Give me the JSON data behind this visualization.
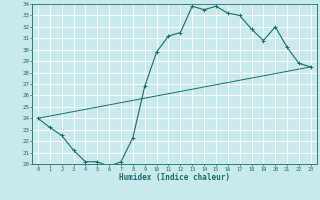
{
  "title": "",
  "xlabel": "Humidex (Indice chaleur)",
  "ylabel": "",
  "bg_color": "#c8eaea",
  "grid_color": "#ffffff",
  "line_color": "#1a6b6b",
  "xlim": [
    -0.5,
    23.5
  ],
  "ylim": [
    20,
    34
  ],
  "xticks": [
    0,
    1,
    2,
    3,
    4,
    5,
    6,
    7,
    8,
    9,
    10,
    11,
    12,
    13,
    14,
    15,
    16,
    17,
    18,
    19,
    20,
    21,
    22,
    23
  ],
  "yticks": [
    20,
    21,
    22,
    23,
    24,
    25,
    26,
    27,
    28,
    29,
    30,
    31,
    32,
    33,
    34
  ],
  "curve1_x": [
    0,
    1,
    2,
    3,
    4,
    5,
    6,
    7,
    8,
    9,
    10,
    11,
    12,
    13,
    14,
    15,
    16,
    17,
    18,
    19,
    20,
    21,
    22,
    23
  ],
  "curve1_y": [
    24.0,
    23.2,
    22.5,
    21.2,
    20.2,
    20.2,
    19.8,
    20.2,
    22.3,
    26.8,
    29.8,
    31.2,
    31.5,
    33.8,
    33.5,
    33.8,
    33.2,
    33.0,
    31.8,
    30.8,
    32.0,
    30.2,
    28.8,
    28.5
  ],
  "curve2_x": [
    0,
    23
  ],
  "curve2_y": [
    24.0,
    28.5
  ]
}
